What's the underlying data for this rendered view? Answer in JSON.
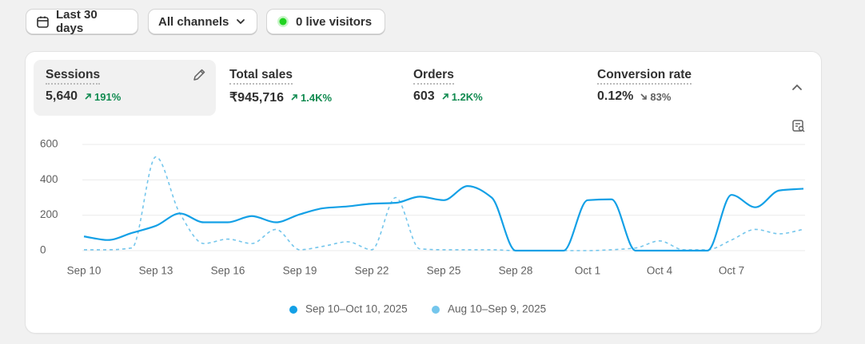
{
  "toolbar": {
    "date_range": "Last 30 days",
    "channels": "All channels",
    "live": "0 live visitors"
  },
  "metrics": [
    {
      "title": "Sessions",
      "value": "5,640",
      "change": "191%"
    },
    {
      "title": "Total sales",
      "value": "₹945,716",
      "change": "1.4K%"
    },
    {
      "title": "Orders",
      "value": "603",
      "change": "1.2K%"
    },
    {
      "title": "Conversion rate",
      "value": "0.12%",
      "change": "83%"
    }
  ],
  "chart_data": {
    "type": "line",
    "categories": [
      "Sep 10",
      null,
      null,
      "Sep 13",
      null,
      null,
      "Sep 16",
      null,
      null,
      "Sep 19",
      null,
      null,
      "Sep 22",
      null,
      null,
      "Sep 25",
      null,
      null,
      "Sep 28",
      null,
      null,
      "Oct 1",
      null,
      null,
      "Oct 4",
      null,
      null,
      "Oct 7",
      null,
      null,
      null
    ],
    "series": [
      {
        "name": "Sep 10–Oct 10, 2025",
        "color": "#13a0e6",
        "dashed": false,
        "values": [
          80,
          60,
          100,
          140,
          210,
          160,
          160,
          195,
          160,
          205,
          240,
          250,
          265,
          270,
          305,
          285,
          365,
          300,
          0,
          0,
          0,
          285,
          290,
          0,
          0,
          0,
          0,
          315,
          245,
          340,
          350
        ]
      },
      {
        "name": "Aug 10–Sep 9, 2025",
        "color": "#74c6ec",
        "dashed": true,
        "values": [
          5,
          5,
          15,
          530,
          210,
          40,
          65,
          40,
          120,
          5,
          25,
          50,
          5,
          300,
          10,
          5,
          5,
          5,
          0,
          0,
          0,
          0,
          5,
          15,
          55,
          5,
          5,
          60,
          120,
          95,
          120
        ]
      }
    ],
    "ylim": [
      0,
      600
    ],
    "yticks": [
      0,
      200,
      400,
      600
    ],
    "grid": true
  }
}
